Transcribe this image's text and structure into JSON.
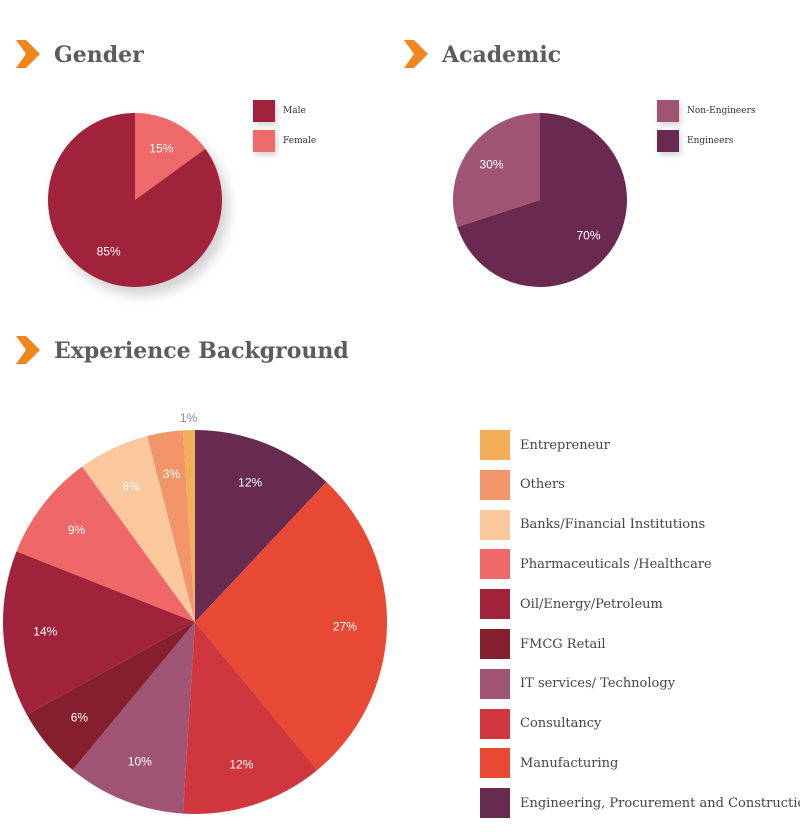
{
  "titles": {
    "gender": "Gender",
    "academic": "Academic",
    "experience": "Experience Background"
  },
  "colors": {
    "chevron": "#f0861d",
    "title": "#5c5c5c"
  },
  "chart_data": [
    {
      "type": "pie",
      "title": "Gender",
      "categories": [
        "Male",
        "Female"
      ],
      "values": [
        85,
        15
      ],
      "labels": [
        "85%",
        "15%"
      ],
      "colors": [
        "#a1233b",
        "#ee6a6a"
      ],
      "legend": "right"
    },
    {
      "type": "pie",
      "title": "Academic",
      "categories": [
        "Non-Engineers",
        "Engineers"
      ],
      "values": [
        30,
        70
      ],
      "labels": [
        "30%",
        "70%"
      ],
      "colors": [
        "#9e5472",
        "#6a2a4f"
      ],
      "legend": "right"
    },
    {
      "type": "pie",
      "title": "Experience Background",
      "categories": [
        "Engineering, Procurement and Construction.",
        "Manufacturing",
        "Consultancy",
        "IT services/ Technology",
        "FMCG Retail",
        "Oil/Energy/Petroleum",
        "Pharmaceuticals /Healthcare",
        "Banks/Financial Institutions",
        "Others",
        "Entrepreneur"
      ],
      "values": [
        12,
        27,
        12,
        10,
        6,
        14,
        9,
        6,
        3,
        1
      ],
      "labels": [
        "12%",
        "27%",
        "12%",
        "10%",
        "6%",
        "14%",
        "9%",
        "6%",
        "3%",
        "1%"
      ],
      "colors": [
        "#672b4f",
        "#e74935",
        "#cf363d",
        "#9f5474",
        "#861f2d",
        "#a1233b",
        "#ef6868",
        "#fbc79d",
        "#f2956a",
        "#f3ae5a"
      ],
      "legend_order": [
        "Entrepreneur",
        "Others",
        "Banks/Financial Institutions",
        "Pharmaceuticals /Healthcare",
        "Oil/Energy/Petroleum",
        "FMCG Retail",
        "IT services/ Technology",
        "Consultancy",
        "Manufacturing",
        "Engineering, Procurement and Construction."
      ],
      "legend": "right"
    }
  ]
}
